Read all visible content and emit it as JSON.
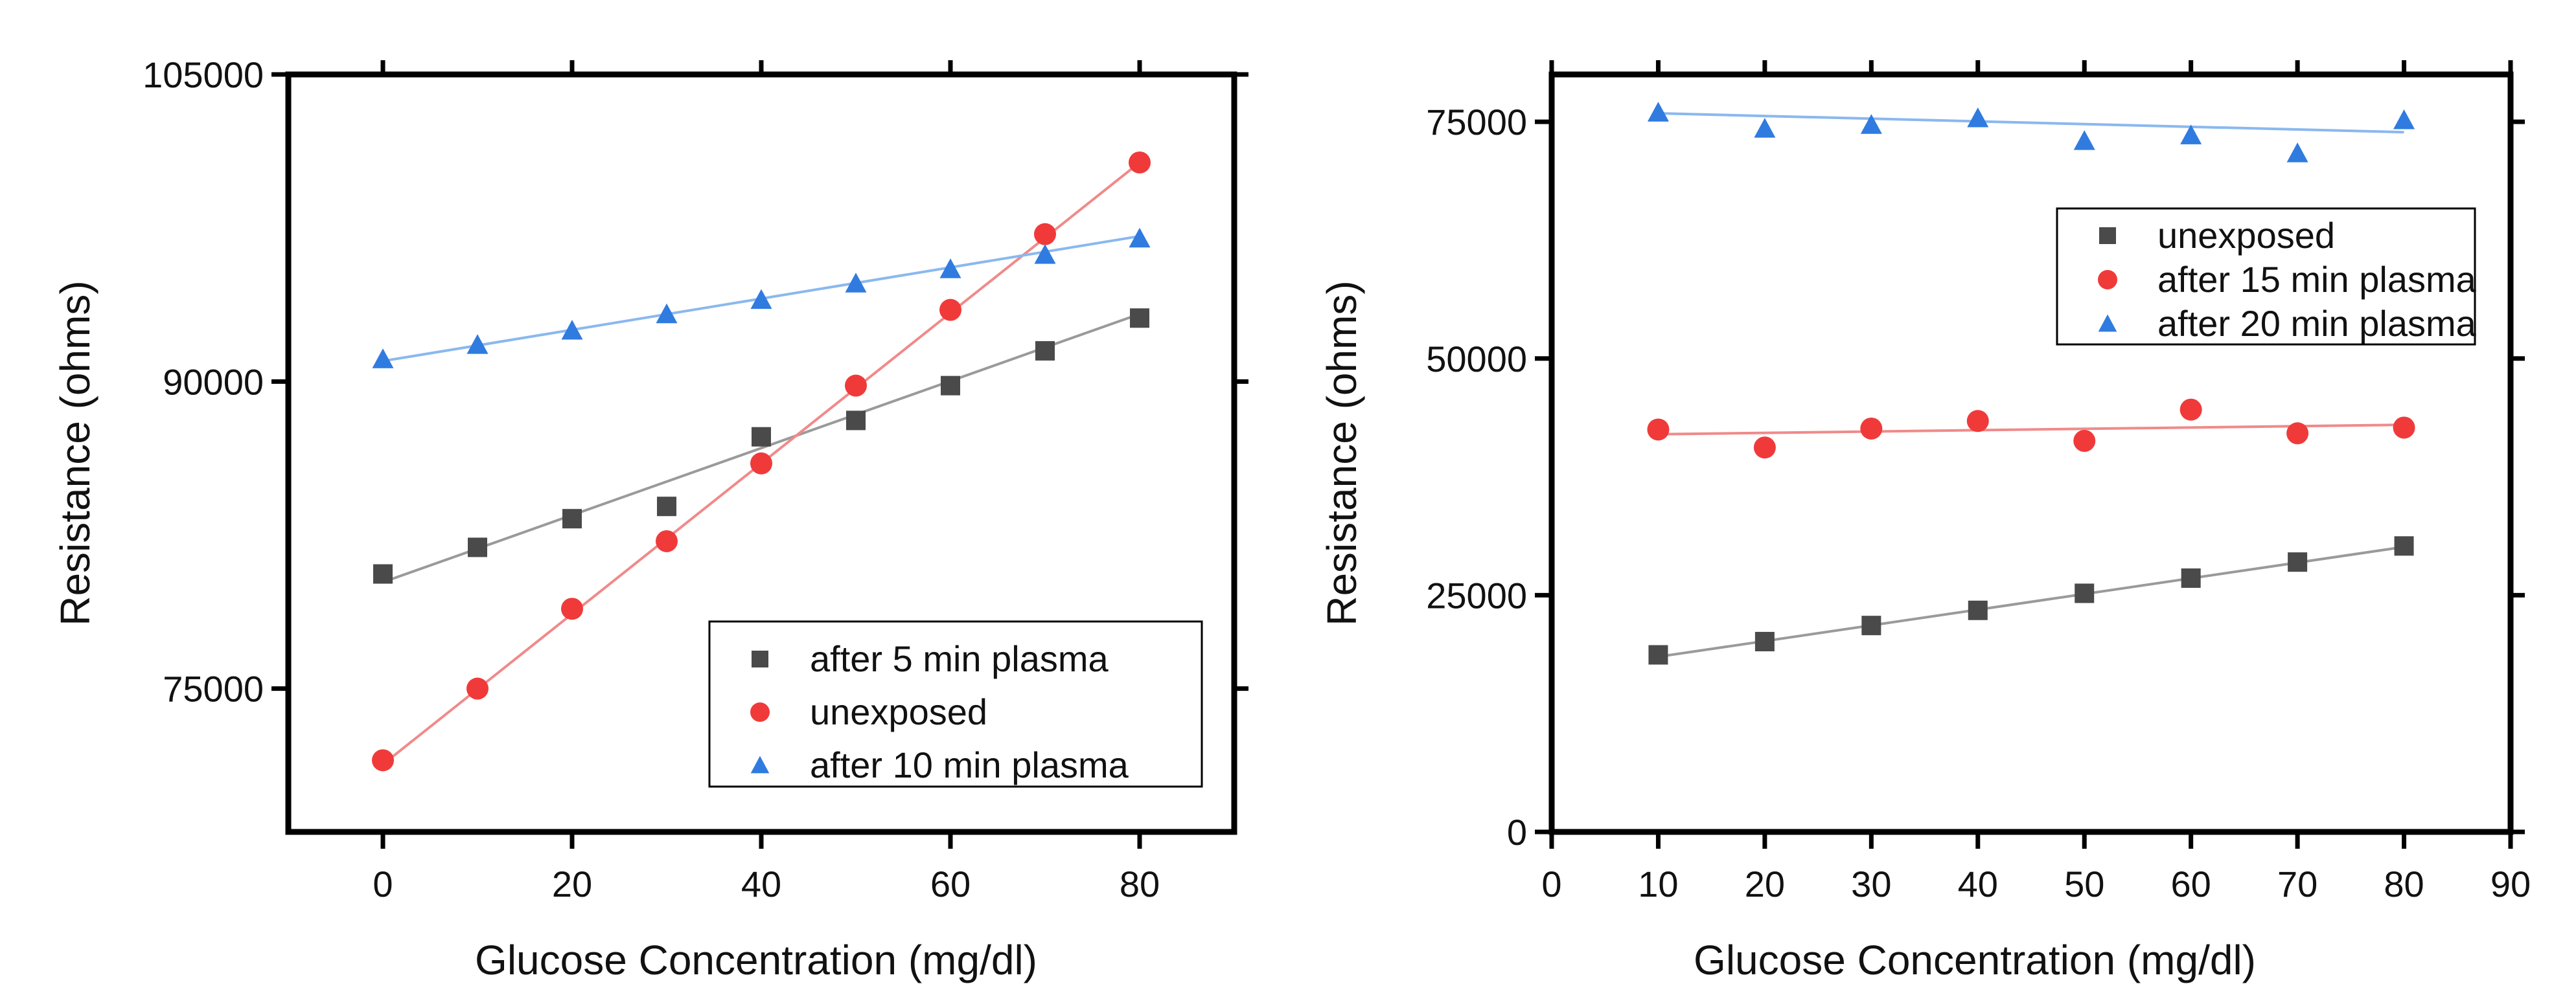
{
  "chart_data": [
    {
      "type": "scatter",
      "xlabel": "Glucose Concentration (mg/dl)",
      "ylabel": "Resistance (ohms)",
      "xlim": [
        -10,
        90
      ],
      "ylim": [
        68000,
        105000
      ],
      "xticks": [
        0,
        20,
        40,
        60,
        80
      ],
      "yticks": [
        75000,
        90000,
        105000
      ],
      "xtick_labels": [
        "0",
        "20",
        "40",
        "60",
        "80"
      ],
      "ytick_labels": [
        "75000",
        "90000",
        "105000"
      ],
      "grid": false,
      "legend_position": "bottom-right",
      "x": [
        0,
        10,
        20,
        30,
        40,
        50,
        60,
        70,
        80
      ],
      "series": [
        {
          "name": "after 5 min plasma",
          "marker": "square",
          "color": "#4a4a4a",
          "line_color": "#9a9a9a",
          "values": [
            80600,
            81900,
            83300,
            83900,
            87300,
            88100,
            89800,
            91500,
            93100
          ],
          "fit": [
            80200,
            93300
          ]
        },
        {
          "name": "unexposed",
          "marker": "circle",
          "color": "#f03a3a",
          "line_color": "#f08a8a",
          "values": [
            71500,
            75000,
            78900,
            82200,
            86000,
            89800,
            93500,
            97200,
            100700
          ],
          "fit": [
            71300,
            100700
          ]
        },
        {
          "name": "after 10 min plasma",
          "marker": "triangle",
          "color": "#2f7be0",
          "line_color": "#8ab8ef",
          "values": [
            91100,
            91800,
            92500,
            93300,
            94000,
            94800,
            95500,
            96200,
            97000
          ],
          "fit": [
            91000,
            97100
          ]
        }
      ]
    },
    {
      "type": "scatter",
      "xlabel": "Glucose Concentration (mg/dl)",
      "ylabel": "Resistance (ohms)",
      "xlim": [
        0,
        90
      ],
      "ylim": [
        0,
        80000
      ],
      "xticks": [
        0,
        10,
        20,
        30,
        40,
        50,
        60,
        70,
        80,
        90
      ],
      "yticks": [
        0,
        25000,
        50000,
        75000
      ],
      "xtick_labels": [
        "0",
        "10",
        "20",
        "30",
        "40",
        "50",
        "60",
        "70",
        "80",
        "90"
      ],
      "ytick_labels": [
        "0",
        "25000",
        "50000",
        "75000"
      ],
      "grid": false,
      "legend_position": "top-right",
      "x": [
        10,
        20,
        30,
        40,
        50,
        60,
        70,
        80
      ],
      "series": [
        {
          "name": "unexposed",
          "marker": "square",
          "color": "#4a4a4a",
          "line_color": "#9a9a9a",
          "values": [
            18700,
            20100,
            21800,
            23400,
            25200,
            26800,
            28500,
            30200
          ],
          "fit": [
            18500,
            30100
          ]
        },
        {
          "name": "after 15 min plasma",
          "marker": "circle",
          "color": "#f03a3a",
          "line_color": "#f08a8a",
          "values": [
            42500,
            40600,
            42600,
            43400,
            41300,
            44600,
            42100,
            42700
          ],
          "fit": [
            42000,
            43000
          ]
        },
        {
          "name": "after 20 min plasma",
          "marker": "triangle",
          "color": "#2f7be0",
          "line_color": "#8ab8ef",
          "values": [
            76000,
            74300,
            74700,
            75400,
            73000,
            73600,
            71700,
            75200
          ],
          "fit": [
            75900,
            73900
          ]
        }
      ]
    }
  ]
}
